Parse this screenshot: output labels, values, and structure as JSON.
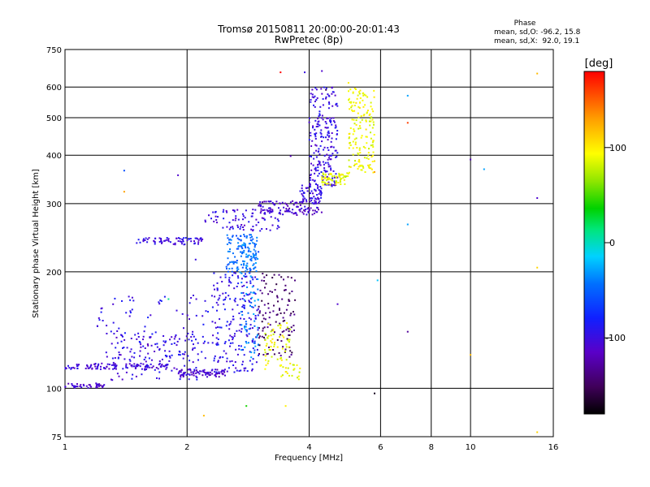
{
  "chart_data": {
    "type": "scatter",
    "title": "Tromsø 20150811 20:00:00-20:01:43",
    "subtitle": "RwPretec (8p)",
    "xlabel": "Frequency [MHz]",
    "ylabel": "Stationary phase Virtual Height [km]",
    "x_scale": "log",
    "y_scale": "log",
    "xlim": [
      1,
      16
    ],
    "ylim": [
      75,
      750
    ],
    "x_ticks": [
      1,
      2,
      4,
      6,
      8,
      10,
      16
    ],
    "y_ticks": [
      75,
      100,
      200,
      300,
      400,
      500,
      600,
      750
    ],
    "grid": true,
    "phase_stats": {
      "header": "Phase",
      "line_o": "mean, sd,O: -96.2, 15.8",
      "line_x": "mean, sd,X:  92.0, 19.1"
    },
    "colorbar": {
      "label": "[deg]",
      "range": [
        -180,
        180
      ],
      "ticks": [
        100,
        0,
        -100
      ],
      "colormap": "rainbow (black-purple-blue-cyan-green-yellow-red)"
    },
    "series": [
      {
        "comment_free": true,
        "clusters": [
          {
            "x": [
              1.0,
              1.25
            ],
            "y": [
              100,
              103
            ],
            "phase": -110,
            "n": 40
          },
          {
            "x": [
              1.0,
              1.8
            ],
            "y": [
              112,
              116
            ],
            "phase": -105,
            "n": 110
          },
          {
            "x": [
              1.3,
              2.2
            ],
            "y": [
              105,
              140
            ],
            "phase": -100,
            "n": 130
          },
          {
            "x": [
              1.9,
              2.5
            ],
            "y": [
              107,
              112
            ],
            "phase": -110,
            "n": 70
          },
          {
            "x": [
              1.2,
              2.3
            ],
            "y": [
              118,
              175
            ],
            "phase": -95,
            "n": 90
          },
          {
            "x": [
              2.3,
              3.0
            ],
            "y": [
              110,
              200
            ],
            "phase": -95,
            "n": 200
          },
          {
            "x": [
              2.5,
              3.0
            ],
            "y": [
              200,
              250
            ],
            "phase": -50,
            "n": 110
          },
          {
            "x": [
              2.7,
              3.0
            ],
            "y": [
              120,
              240
            ],
            "phase": -40,
            "n": 90
          },
          {
            "x": [
              1.5,
              2.2
            ],
            "y": [
              235,
              245
            ],
            "phase": -100,
            "n": 70
          },
          {
            "x": [
              2.2,
              3.4
            ],
            "y": [
              255,
              290
            ],
            "phase": -100,
            "n": 80
          },
          {
            "x": [
              3.0,
              4.3
            ],
            "y": [
              280,
              305
            ],
            "phase": -110,
            "n": 110
          },
          {
            "x": [
              3.8,
              4.3
            ],
            "y": [
              300,
              335
            ],
            "phase": -100,
            "n": 60
          },
          {
            "x": [
              4.0,
              4.7
            ],
            "y": [
              330,
              600
            ],
            "phase": -100,
            "n": 220
          },
          {
            "x": [
              4.3,
              5.0
            ],
            "y": [
              335,
              360
            ],
            "phase": 90,
            "n": 60
          },
          {
            "x": [
              5.0,
              5.8
            ],
            "y": [
              360,
              600
            ],
            "phase": 92,
            "n": 160
          },
          {
            "x": [
              3.0,
              3.7
            ],
            "y": [
              120,
              200
            ],
            "phase": -145,
            "n": 120
          },
          {
            "x": [
              3.1,
              3.6
            ],
            "y": [
              112,
              150
            ],
            "phase": 92,
            "n": 60
          },
          {
            "x": [
              3.4,
              3.8
            ],
            "y": [
              105,
              115
            ],
            "phase": 90,
            "n": 20
          }
        ],
        "isolated_points": [
          [
            1.4,
            365,
            -60
          ],
          [
            1.4,
            322,
            130
          ],
          [
            1.9,
            355,
            -110
          ],
          [
            2.1,
            215,
            -100
          ],
          [
            1.6,
            130,
            -120
          ],
          [
            1.8,
            170,
            10
          ],
          [
            2.2,
            85,
            120
          ],
          [
            2.8,
            90,
            40
          ],
          [
            3.5,
            90,
            100
          ],
          [
            3.4,
            655,
            180
          ],
          [
            3.6,
            398,
            -120
          ],
          [
            3.9,
            655,
            -100
          ],
          [
            4.3,
            660,
            -110
          ],
          [
            4.4,
            590,
            -150
          ],
          [
            4.7,
            165,
            -110
          ],
          [
            5.0,
            615,
            100
          ],
          [
            5.8,
            362,
            130
          ],
          [
            5.9,
            190,
            -20
          ],
          [
            5.8,
            97,
            -170
          ],
          [
            7.0,
            570,
            -30
          ],
          [
            7.0,
            485,
            160
          ],
          [
            7.0,
            265,
            -30
          ],
          [
            7.0,
            140,
            -130
          ],
          [
            10.0,
            390,
            -120
          ],
          [
            10.0,
            122,
            120
          ],
          [
            10.8,
            368,
            -30
          ],
          [
            14.6,
            650,
            120
          ],
          [
            14.6,
            310,
            -110
          ],
          [
            14.6,
            205,
            110
          ],
          [
            14.6,
            77,
            110
          ]
        ]
      }
    ]
  }
}
